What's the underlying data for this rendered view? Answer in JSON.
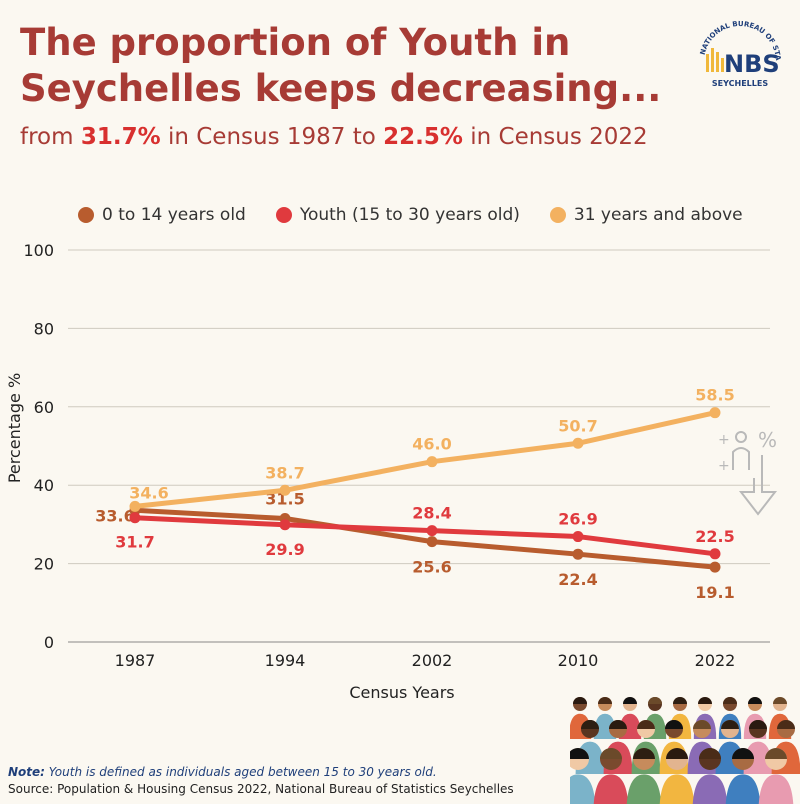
{
  "header": {
    "title": "The proportion of Youth in Seychelles keeps decreasing...",
    "subtitle_prefix": "from ",
    "subtitle_value1": "31.7%",
    "subtitle_middle": " in Census 1987 to ",
    "subtitle_value2": "22.5%",
    "subtitle_suffix": " in Census 2022"
  },
  "logo": {
    "text": "NBS",
    "ring_text": "NATIONAL BUREAU OF STATISTICS",
    "sub_text": "SEYCHELLES"
  },
  "colors": {
    "title": "#a73b35",
    "highlight": "#d8302f",
    "series_0_14": "#b85c2e",
    "series_youth": "#e03a3e",
    "series_31plus": "#f3b160",
    "grid": "#cfcac0"
  },
  "icons": {
    "decoration": "person-percent-down-arrow-icon",
    "crowd": "crowd-illustration"
  },
  "chart_data": {
    "type": "line",
    "x": [
      "1987",
      "1994",
      "2002",
      "2010",
      "2022"
    ],
    "series": [
      {
        "name": "0 to 14 years old",
        "values": [
          33.6,
          31.5,
          25.6,
          22.4,
          19.1
        ],
        "color": "#b85c2e"
      },
      {
        "name": "Youth (15 to 30 years old)",
        "values": [
          31.7,
          29.9,
          28.4,
          26.9,
          22.5
        ],
        "color": "#e03a3e"
      },
      {
        "name": "31 years and above",
        "values": [
          34.6,
          38.7,
          46.0,
          50.7,
          58.5
        ],
        "color": "#f3b160"
      }
    ],
    "xlabel": "Census Years",
    "ylabel": "Percentage %",
    "ylim": [
      0,
      100
    ],
    "yticks": [
      "0",
      "20",
      "40",
      "60",
      "80",
      "100"
    ],
    "grid": true,
    "legend": "top"
  },
  "footer": {
    "note_label": "Note:",
    "note_text": " Youth is defined as individuals aged between 15 to 30 years old.",
    "source": "Source: Population & Housing Census 2022, National Bureau of Statistics Seychelles"
  }
}
